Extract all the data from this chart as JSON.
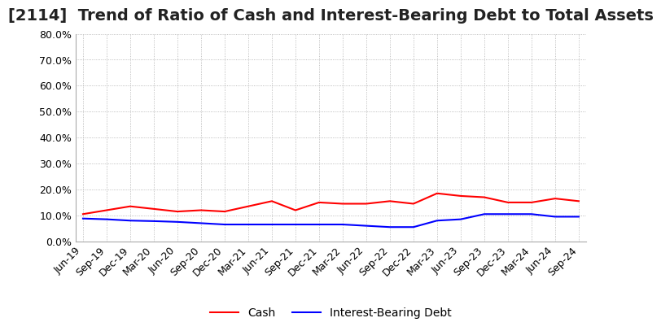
{
  "title": "[2114]  Trend of Ratio of Cash and Interest-Bearing Debt to Total Assets",
  "x_labels": [
    "Jun-19",
    "Sep-19",
    "Dec-19",
    "Mar-20",
    "Jun-20",
    "Sep-20",
    "Dec-20",
    "Mar-21",
    "Jun-21",
    "Sep-21",
    "Dec-21",
    "Mar-22",
    "Jun-22",
    "Sep-22",
    "Dec-22",
    "Mar-23",
    "Jun-23",
    "Sep-23",
    "Dec-23",
    "Mar-24",
    "Jun-24",
    "Sep-24"
  ],
  "cash": [
    10.5,
    12.0,
    13.5,
    12.5,
    11.5,
    12.0,
    11.5,
    13.5,
    15.5,
    12.0,
    15.0,
    14.5,
    14.5,
    15.5,
    14.5,
    18.5,
    17.5,
    17.0,
    15.0,
    15.0,
    16.5,
    15.5
  ],
  "ibd": [
    8.8,
    8.5,
    8.0,
    7.8,
    7.5,
    7.0,
    6.5,
    6.5,
    6.5,
    6.5,
    6.5,
    6.5,
    6.0,
    5.5,
    5.5,
    8.0,
    8.5,
    10.5,
    10.5,
    10.5,
    9.5,
    9.5
  ],
  "cash_color": "#ff0000",
  "ibd_color": "#0000ff",
  "ylim": [
    0,
    80
  ],
  "yticks": [
    0,
    10,
    20,
    30,
    40,
    50,
    60,
    70,
    80
  ],
  "bg_color": "#ffffff",
  "plot_bg_color": "#ffffff",
  "grid_color": "#aaaaaa",
  "title_fontsize": 14,
  "tick_fontsize": 9,
  "legend_fontsize": 10
}
